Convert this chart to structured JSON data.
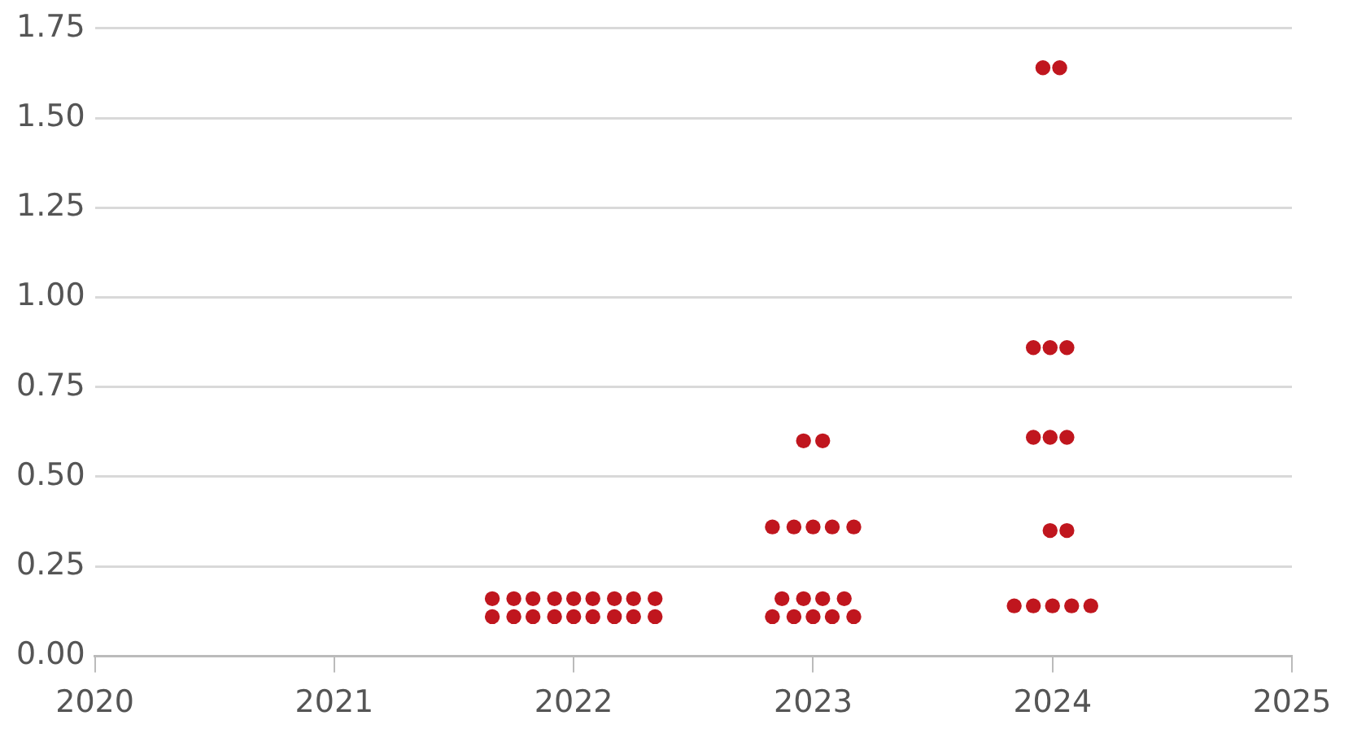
{
  "chart_data": {
    "type": "scatter",
    "marker": "circle",
    "grid": "y",
    "legend": false,
    "xlim": [
      2020,
      2025
    ],
    "xticks": [
      2020,
      2021,
      2022,
      2023,
      2024,
      2025
    ],
    "ylim": [
      0,
      1.75
    ],
    "yticks": [
      {
        "value": 0,
        "label": "0.00"
      },
      {
        "value": 0.25,
        "label": "0.25"
      },
      {
        "value": 0.5,
        "label": "0.50"
      },
      {
        "value": 0.75,
        "label": "0.75"
      },
      {
        "value": 1,
        "label": "1.00"
      },
      {
        "value": 1.25,
        "label": "1.25"
      },
      {
        "value": 1.5,
        "label": "1.50"
      },
      {
        "value": 1.75,
        "label": "1.75"
      }
    ],
    "series": [
      {
        "color": "#c0161e",
        "x": [
          2021.66,
          2021.75,
          2021.83,
          2021.92,
          2022.0,
          2022.08,
          2022.17,
          2022.25,
          2022.34,
          2021.66,
          2021.75,
          2021.83,
          2021.92,
          2022.0,
          2022.08,
          2022.17,
          2022.25,
          2022.34,
          2022.96,
          2023.04,
          2022.83,
          2022.92,
          2023.0,
          2023.08,
          2023.17,
          2022.87,
          2022.96,
          2023.04,
          2023.13,
          2022.83,
          2022.92,
          2023.0,
          2023.08,
          2023.17,
          2023.96,
          2024.03,
          2023.92,
          2023.99,
          2024.06,
          2023.92,
          2023.99,
          2024.06,
          2023.99,
          2024.06,
          2023.84,
          2023.92,
          2024.0,
          2024.08,
          2024.16
        ],
        "values": [
          0.16,
          0.16,
          0.16,
          0.16,
          0.16,
          0.16,
          0.16,
          0.16,
          0.16,
          0.11,
          0.11,
          0.11,
          0.11,
          0.11,
          0.11,
          0.11,
          0.11,
          0.11,
          0.6,
          0.6,
          0.36,
          0.36,
          0.36,
          0.36,
          0.36,
          0.16,
          0.16,
          0.16,
          0.16,
          0.11,
          0.11,
          0.11,
          0.11,
          0.11,
          1.64,
          1.64,
          0.86,
          0.86,
          0.86,
          0.61,
          0.61,
          0.61,
          0.35,
          0.35,
          0.14,
          0.14,
          0.14,
          0.14,
          0.14
        ]
      }
    ]
  }
}
